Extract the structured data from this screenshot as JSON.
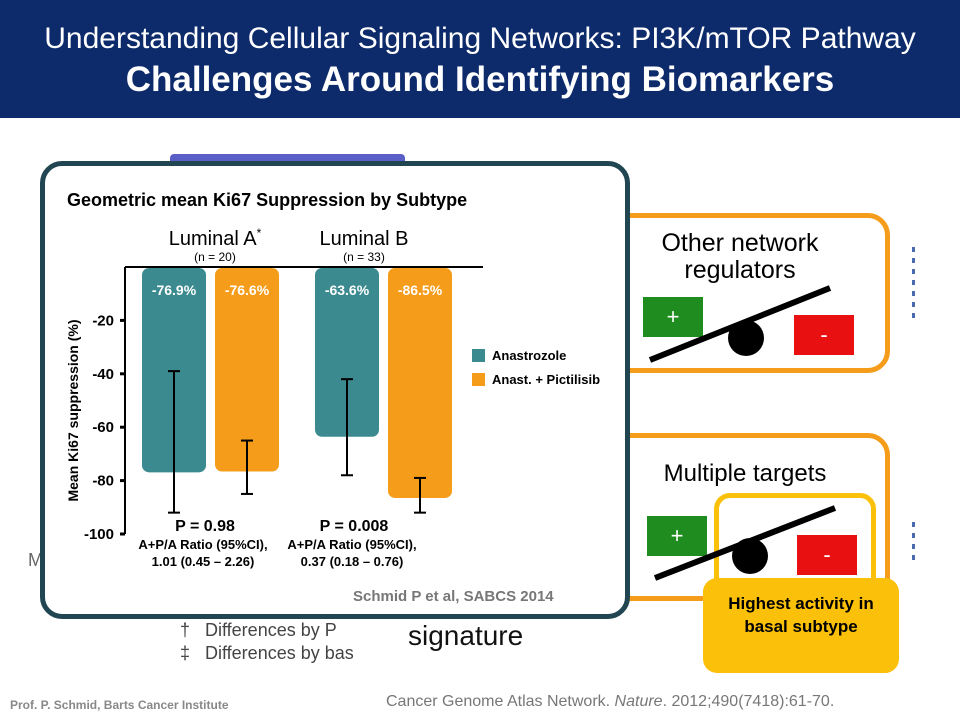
{
  "header": {
    "line1": "Understanding Cellular Signaling Networks: PI3K/mTOR Pathway",
    "line2": "Challenges Around Identifying Biomarkers"
  },
  "colors": {
    "header_bg": "#0d2a6b",
    "teal": "#3a8a8f",
    "orange": "#f59c1a",
    "panel_border": "#214652",
    "green": "#1e8c1e",
    "red": "#e81010",
    "yellow": "#fbc10a"
  },
  "right_boxes": {
    "box1": {
      "title": "Other network regulators",
      "plus": "+",
      "minus": "-"
    },
    "box2": {
      "title": "Multiple targets",
      "plus": "+",
      "minus": "-",
      "callout": "Highest activity in basal subtype"
    }
  },
  "background_text": {
    "signature": "signature",
    "diff1": "Differences by P",
    "diff2": "Differences by bas",
    "symbol1": "†",
    "symbol2": "‡",
    "m_fragment": "M"
  },
  "footer": {
    "left": "Prof. P. Schmid, Barts Cancer Institute",
    "citation_authors": "Cancer Genome Atlas Network. ",
    "citation_journal": "Nature",
    "citation_rest": ". 2012;490(7418):61-70."
  },
  "chart_data": {
    "type": "bar",
    "title": "Geometric mean Ki67 Suppression by Subtype",
    "ylabel": "Mean Ki67 suppression (%)",
    "ylim": [
      -100,
      0
    ],
    "y_ticks": [
      "-20",
      "-40",
      "-60",
      "-80",
      "-100"
    ],
    "y_tick_values": [
      -20,
      -40,
      -60,
      -80,
      -100
    ],
    "categories": [
      {
        "name": "Luminal A",
        "marker": "*",
        "n": "(n = 20)",
        "p_value": "P = 0.98",
        "ratio_label": "A+P/A Ratio (95%CI),",
        "ratio_value": "1.01 (0.45 – 2.26)"
      },
      {
        "name": "Luminal B",
        "marker": "",
        "n": "(n = 33)",
        "p_value": "P = 0.008",
        "ratio_label": "A+P/A Ratio (95%CI),",
        "ratio_value": "0.37 (0.18 – 0.76)"
      }
    ],
    "series": [
      {
        "name": "Anastrozole",
        "color": "#3a8a8f",
        "values": [
          -76.9,
          -63.6
        ],
        "labels": [
          "-76.9%",
          "-63.6%"
        ],
        "err_low": [
          -92,
          -78
        ],
        "err_high": [
          -39,
          -42
        ]
      },
      {
        "name": "Anast. + Pictilisib",
        "color": "#f59c1a",
        "values": [
          -76.6,
          -86.5
        ],
        "labels": [
          "-76.6%",
          "-86.5%"
        ],
        "err_low": [
          -85,
          -92
        ],
        "err_high": [
          -65,
          -79
        ]
      }
    ],
    "source": "Schmid P et al, SABCS 2014"
  }
}
